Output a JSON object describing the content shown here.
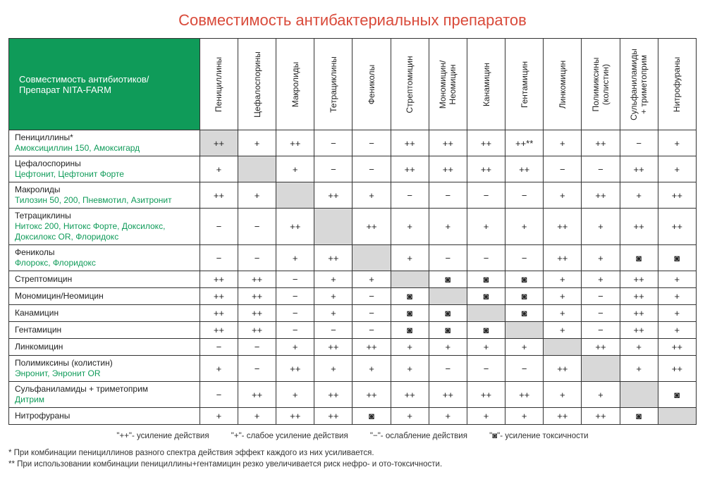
{
  "title": "Совместимость антибактериальных препаратов",
  "corner_label": "Совместимость антибиотиков/\nПрепарат NITA-FARM",
  "column_headers": [
    "Пенициллины",
    "Цефалоспорины",
    "Макролиды",
    "Тетрациклины",
    "Фениколы",
    "Стрептомицин",
    "Мономицин/\nНеомицин",
    "Канамицин",
    "Гентамицин",
    "Линкомицин",
    "Полимиксины\n(колистин)",
    "Сульфаниламиды\n+ триметоприм",
    "Нитрофураны"
  ],
  "rows": [
    {
      "main": "Пенициллины*",
      "sub": "Амоксициллин 150, Амоксигард",
      "cells": [
        "++",
        "+",
        "++",
        "−",
        "−",
        "++",
        "++",
        "++",
        "++**",
        "+",
        "++",
        "−",
        "+"
      ]
    },
    {
      "main": "Цефалоспорины",
      "sub": "Цефтонит, Цефтонит Форте",
      "cells": [
        "+",
        "",
        "+",
        "−",
        "−",
        "++",
        "++",
        "++",
        "++",
        "−",
        "−",
        "++",
        "+"
      ]
    },
    {
      "main": "Макролиды",
      "sub": "Тилозин 50, 200, Пневмотил, Азитронит",
      "cells": [
        "++",
        "+",
        "",
        "++",
        "+",
        "−",
        "−",
        "−",
        "−",
        "+",
        "++",
        "+",
        "++"
      ]
    },
    {
      "main": "Тетрациклины",
      "sub": "Нитокс 200, Нитокс Форте, Доксилокс, Доксилокс OR, Флоридокс",
      "cells": [
        "−",
        "−",
        "++",
        "",
        "++",
        "+",
        "+",
        "+",
        "+",
        "++",
        "+",
        "++",
        "++"
      ]
    },
    {
      "main": "Фениколы",
      "sub": "Флорокс, Флоридокс",
      "cells": [
        "−",
        "−",
        "+",
        "++",
        "",
        "+",
        "−",
        "−",
        "−",
        "++",
        "+",
        "◙",
        "◙"
      ]
    },
    {
      "main": "Стрептомицин",
      "sub": "",
      "cells": [
        "++",
        "++",
        "−",
        "+",
        "+",
        "",
        "◙",
        "◙",
        "◙",
        "+",
        "+",
        "++",
        "+"
      ]
    },
    {
      "main": "Мономицин/Неомицин",
      "sub": "",
      "cells": [
        "++",
        "++",
        "−",
        "+",
        "−",
        "◙",
        "",
        "◙",
        "◙",
        "+",
        "−",
        "++",
        "+"
      ]
    },
    {
      "main": "Канамицин",
      "sub": "",
      "cells": [
        "++",
        "++",
        "−",
        "+",
        "−",
        "◙",
        "◙",
        "",
        "◙",
        "+",
        "−",
        "++",
        "+"
      ]
    },
    {
      "main": "Гентамицин",
      "sub": "",
      "cells": [
        "++",
        "++",
        "−",
        "−",
        "−",
        "◙",
        "◙",
        "◙",
        "",
        "+",
        "−",
        "++",
        "+"
      ]
    },
    {
      "main": "Линкомицин",
      "sub": "",
      "cells": [
        "−",
        "−",
        "+",
        "++",
        "++",
        "+",
        "+",
        "+",
        "+",
        "",
        "++",
        "+",
        "++"
      ]
    },
    {
      "main": "Полимиксины (колистин)",
      "sub": "Энронит, Энронит OR",
      "cells": [
        "+",
        "−",
        "++",
        "+",
        "+",
        "+",
        "−",
        "−",
        "−",
        "++",
        "",
        "+",
        "++"
      ]
    },
    {
      "main": "Сульфаниламиды + триметоприм",
      "sub": "Дитрим",
      "cells": [
        "−",
        "++",
        "+",
        "++",
        "++",
        "++",
        "++",
        "++",
        "++",
        "+",
        "+",
        "",
        "◙"
      ]
    },
    {
      "main": "Нитрофураны",
      "sub": "",
      "cells": [
        "+",
        "+",
        "++",
        "++",
        "◙",
        "+",
        "+",
        "+",
        "+",
        "++",
        "++",
        "◙",
        ""
      ]
    }
  ],
  "legend": {
    "plusplus": "\"++\"- усиление действия",
    "plus": "\"+\"- слабое усиление действия",
    "minus": "\"−\"- ослабление действия",
    "box": "\"◙\"- усиление токсичности"
  },
  "notes": {
    "n1": "* При комбинации пенициллинов разного спектра действия эффект каждого из них усиливается.",
    "n2": "** При использовании комбинации пенициллины+гентамицин резко увеличивается риск нефро- и ото-токсичности."
  },
  "colors": {
    "title": "#d94a3a",
    "header_bg": "#0f9b59",
    "sub_text": "#0f9b59",
    "border": "#333333",
    "diag_bg": "#d8d8d8"
  }
}
